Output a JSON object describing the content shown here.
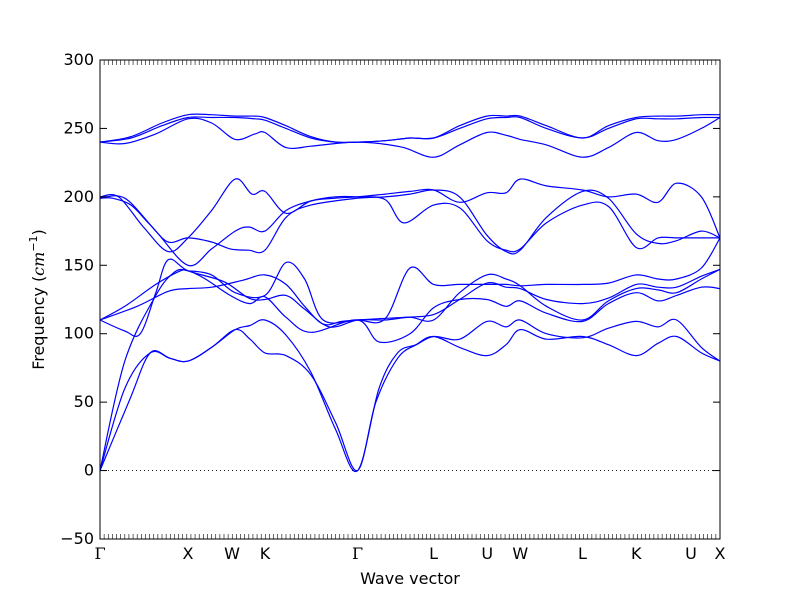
{
  "chart_data": {
    "type": "line",
    "title": "",
    "xlabel": "Wave vector",
    "ylabel": "Frequency (cm⁻¹)",
    "ylabel_prefix": "Frequency (",
    "ylabel_unit": "cm",
    "ylabel_exp": "−1",
    "ylabel_suffix": ")",
    "ylim": [
      -50,
      300
    ],
    "yticks": [
      {
        "value": -50,
        "label": "−50"
      },
      {
        "value": 0,
        "label": "0"
      },
      {
        "value": 50,
        "label": "50"
      },
      {
        "value": 100,
        "label": "100"
      },
      {
        "value": 150,
        "label": "150"
      },
      {
        "value": 200,
        "label": "200"
      },
      {
        "value": 250,
        "label": "250"
      },
      {
        "value": 300,
        "label": "300"
      }
    ],
    "xlim": [
      0,
      1
    ],
    "high_symmetry_points": [
      {
        "label": "Γ",
        "x": 0.0
      },
      {
        "label": "X",
        "x": 0.1419
      },
      {
        "label": "W",
        "x": 0.2129
      },
      {
        "label": "K",
        "x": 0.2661
      },
      {
        "label": "Γ",
        "x": 0.4155
      },
      {
        "label": "L",
        "x": 0.5381
      },
      {
        "label": "U",
        "x": 0.6245
      },
      {
        "label": "W",
        "x": 0.6778
      },
      {
        "label": "L",
        "x": 0.7782
      },
      {
        "label": "K",
        "x": 0.8649
      },
      {
        "label": "U",
        "x": 0.9532
      },
      {
        "label": "X",
        "x": 1.0
      }
    ],
    "zero_line": {
      "y": 0,
      "style": "dotted"
    },
    "line_color": "#0000ff",
    "series": [
      {
        "x": [
          0.0,
          0.048,
          0.081,
          0.113,
          0.142,
          0.18,
          0.218,
          0.242,
          0.266,
          0.3,
          0.34,
          0.38,
          0.4155,
          0.445,
          0.48,
          0.51,
          0.5381,
          0.58,
          0.624,
          0.655,
          0.6778,
          0.72,
          0.7782,
          0.82,
          0.8649,
          0.9,
          0.93,
          0.97,
          1.0
        ],
        "y": [
          0,
          52,
          86,
          82,
          80,
          90,
          103,
          96,
          86,
          84,
          70,
          35,
          0,
          50,
          82,
          92,
          98,
          90,
          84,
          92,
          103,
          96,
          98,
          92,
          84,
          93,
          98,
          86,
          80
        ]
      },
      {
        "x": [
          0.0,
          0.04,
          0.081,
          0.113,
          0.142,
          0.18,
          0.218,
          0.242,
          0.266,
          0.3,
          0.34,
          0.38,
          0.4155,
          0.45,
          0.48,
          0.51,
          0.5381,
          0.58,
          0.624,
          0.655,
          0.6778,
          0.72,
          0.7782,
          0.82,
          0.8649,
          0.9,
          0.93,
          0.97,
          1.0
        ],
        "y": [
          0,
          60,
          86,
          82,
          80,
          90,
          103,
          106,
          110,
          99,
          72,
          30,
          0,
          60,
          86,
          92,
          98,
          96,
          109,
          105,
          110,
          100,
          97,
          104,
          109,
          105,
          110,
          90,
          80
        ]
      },
      {
        "x": [
          0.0,
          0.04,
          0.09,
          0.12,
          0.142,
          0.17,
          0.21,
          0.242,
          0.266,
          0.3,
          0.34,
          0.4155,
          0.45,
          0.5,
          0.5381,
          0.58,
          0.624,
          0.655,
          0.6778,
          0.72,
          0.7782,
          0.82,
          0.8649,
          0.9,
          0.93,
          0.97,
          1.0
        ],
        "y": [
          0,
          80,
          128,
          145,
          146,
          140,
          128,
          122,
          127,
          112,
          101,
          110,
          94,
          100,
          119,
          125,
          125,
          120,
          124,
          115,
          109,
          122,
          130,
          124,
          128,
          134,
          133
        ]
      },
      {
        "x": [
          0.0,
          0.04,
          0.065,
          0.09,
          0.11,
          0.142,
          0.2,
          0.24,
          0.266,
          0.3,
          0.33,
          0.37,
          0.4155,
          0.46,
          0.5,
          0.5381,
          0.58,
          0.624,
          0.655,
          0.6778,
          0.72,
          0.7782,
          0.82,
          0.8649,
          0.9,
          0.93,
          0.97,
          1.0
        ],
        "y": [
          110,
          102,
          100,
          130,
          154,
          146,
          138,
          126,
          125,
          128,
          118,
          105,
          110,
          110,
          112,
          110,
          130,
          143,
          140,
          135,
          120,
          110,
          124,
          133,
          132,
          130,
          140,
          147
        ]
      },
      {
        "x": [
          0.0,
          0.06,
          0.11,
          0.142,
          0.18,
          0.23,
          0.266,
          0.3,
          0.33,
          0.36,
          0.39,
          0.4155,
          0.45,
          0.49,
          0.5381,
          0.58,
          0.624,
          0.655,
          0.6778,
          0.72,
          0.7782,
          0.82,
          0.8649,
          0.9,
          0.93,
          0.97,
          1.0
        ],
        "y": [
          110,
          120,
          131,
          133,
          134,
          139,
          143,
          136,
          120,
          107,
          109,
          110,
          111,
          112,
          114,
          125,
          137,
          134,
          133,
          125,
          122,
          126,
          136,
          134,
          134,
          142,
          147
        ]
      },
      {
        "x": [
          0.0,
          0.04,
          0.09,
          0.13,
          0.142,
          0.18,
          0.218,
          0.266,
          0.3,
          0.33,
          0.36,
          0.4155,
          0.46,
          0.5,
          0.5381,
          0.58,
          0.624,
          0.655,
          0.6778,
          0.72,
          0.7782,
          0.82,
          0.8649,
          0.9,
          0.93,
          0.97,
          1.0
        ],
        "y": [
          110,
          120,
          136,
          146,
          146,
          143,
          130,
          128,
          152,
          140,
          110,
          110,
          111,
          148,
          136,
          136,
          136,
          136,
          135,
          136,
          136,
          137,
          143,
          140,
          140,
          148,
          170
        ]
      },
      {
        "x": [
          0.0,
          0.02,
          0.05,
          0.08,
          0.11,
          0.142,
          0.18,
          0.21,
          0.24,
          0.266,
          0.3,
          0.34,
          0.4155,
          0.46,
          0.5,
          0.5381,
          0.58,
          0.624,
          0.655,
          0.6778,
          0.72,
          0.7782,
          0.82,
          0.8649,
          0.9,
          0.93,
          0.97,
          1.0
        ],
        "y": [
          199,
          199,
          194,
          180,
          167,
          170,
          167,
          162,
          161,
          161,
          185,
          194,
          199,
          200,
          202,
          205,
          200,
          172,
          160,
          161,
          185,
          204,
          199,
          173,
          166,
          168,
          175,
          170
        ]
      },
      {
        "x": [
          0.0,
          0.04,
          0.09,
          0.142,
          0.18,
          0.218,
          0.24,
          0.266,
          0.3,
          0.34,
          0.38,
          0.4155,
          0.46,
          0.49,
          0.5381,
          0.58,
          0.624,
          0.655,
          0.6778,
          0.72,
          0.7782,
          0.82,
          0.8649,
          0.9,
          0.93,
          0.97,
          1.0
        ],
        "y": [
          199,
          199,
          175,
          150,
          162,
          175,
          178,
          175,
          190,
          197,
          200,
          200,
          198,
          181,
          194,
          192,
          168,
          161,
          162,
          181,
          194,
          193,
          163,
          170,
          170,
          170,
          170
        ]
      },
      {
        "x": [
          0.0,
          0.03,
          0.07,
          0.11,
          0.142,
          0.18,
          0.218,
          0.245,
          0.266,
          0.3,
          0.34,
          0.38,
          0.4155,
          0.46,
          0.5,
          0.5381,
          0.58,
          0.624,
          0.655,
          0.6778,
          0.72,
          0.7782,
          0.82,
          0.8649,
          0.9,
          0.93,
          0.97,
          1.0
        ],
        "y": [
          200,
          200,
          178,
          160,
          170,
          190,
          213,
          202,
          204,
          188,
          197,
          199,
          200,
          202,
          204,
          205,
          196,
          203,
          203,
          213,
          208,
          205,
          200,
          202,
          196,
          210,
          200,
          170
        ]
      },
      {
        "x": [
          0.0,
          0.04,
          0.09,
          0.142,
          0.18,
          0.218,
          0.25,
          0.266,
          0.3,
          0.34,
          0.38,
          0.4155,
          0.45,
          0.49,
          0.5381,
          0.58,
          0.624,
          0.655,
          0.6778,
          0.72,
          0.7782,
          0.82,
          0.8649,
          0.9,
          0.93,
          0.97,
          1.0
        ],
        "y": [
          240,
          239,
          246,
          257,
          254,
          242,
          246,
          247,
          236,
          237,
          239,
          240,
          239,
          236,
          229,
          238,
          247,
          245,
          242,
          238,
          229,
          236,
          247,
          241,
          242,
          250,
          258
        ]
      },
      {
        "x": [
          0.0,
          0.05,
          0.1,
          0.142,
          0.18,
          0.218,
          0.25,
          0.266,
          0.3,
          0.34,
          0.38,
          0.4155,
          0.46,
          0.5,
          0.5381,
          0.58,
          0.624,
          0.655,
          0.6778,
          0.72,
          0.7782,
          0.82,
          0.8649,
          0.9,
          0.93,
          0.97,
          1.0
        ],
        "y": [
          240,
          243,
          252,
          258,
          258,
          258,
          257,
          256,
          250,
          243,
          240,
          240,
          241,
          243,
          243,
          250,
          257,
          258,
          258,
          250,
          243,
          250,
          257,
          257,
          257,
          258,
          258
        ]
      },
      {
        "x": [
          0.0,
          0.05,
          0.1,
          0.142,
          0.18,
          0.218,
          0.25,
          0.266,
          0.3,
          0.34,
          0.38,
          0.4155,
          0.46,
          0.5,
          0.5381,
          0.58,
          0.624,
          0.655,
          0.6778,
          0.72,
          0.7782,
          0.82,
          0.8649,
          0.9,
          0.93,
          0.97,
          1.0
        ],
        "y": [
          240,
          244,
          254,
          260,
          260,
          259,
          259,
          258,
          252,
          244,
          240,
          240,
          241,
          243,
          243,
          252,
          259,
          259,
          259,
          252,
          243,
          252,
          258,
          259,
          259,
          260,
          260
        ]
      }
    ]
  }
}
